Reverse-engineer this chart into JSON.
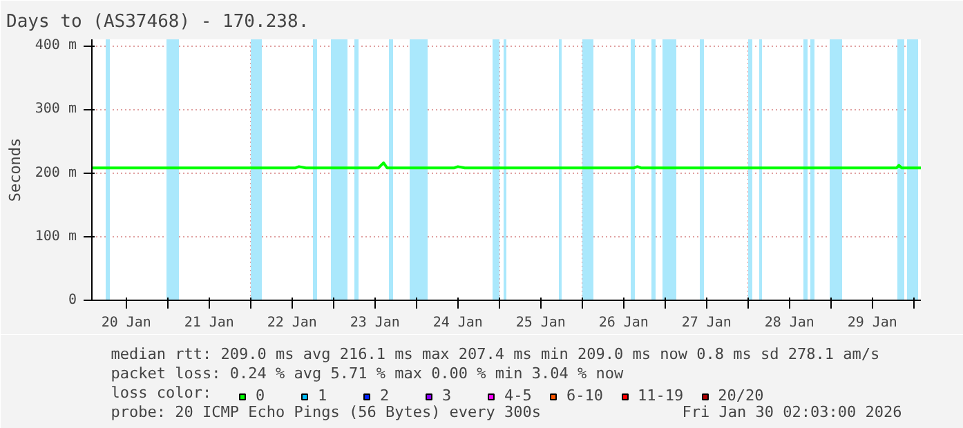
{
  "chart_data": {
    "type": "line",
    "title": "Days to (AS37468) - 170.238.",
    "ylabel": "Seconds",
    "x": [
      "2026-01-20T02:03",
      "2026-01-22T13:00",
      "2026-01-22T14:00",
      "2026-01-22T16:00",
      "2026-01-23T13:00",
      "2026-01-23T14:30",
      "2026-01-23T15:30",
      "2026-01-24T11:00",
      "2026-01-24T12:00",
      "2026-01-24T14:00",
      "2026-01-26T15:00",
      "2026-01-26T16:00",
      "2026-01-26T17:00",
      "2026-01-29T19:00",
      "2026-01-29T19:40",
      "2026-01-29T20:30",
      "2026-01-30T02:03"
    ],
    "series": [
      {
        "name": "0",
        "color": "#00ff00",
        "values": [
          208,
          208,
          210,
          208,
          208,
          216,
          208,
          208,
          210,
          208,
          208,
          210,
          208,
          208,
          212,
          208,
          208
        ]
      },
      {
        "name": "1",
        "color": "#00bbff",
        "values": [
          null,
          null,
          null,
          null,
          null,
          null,
          null,
          null,
          null,
          null,
          null,
          null,
          null,
          null,
          null,
          null,
          null
        ]
      },
      {
        "name": "2",
        "color": "#0022ff",
        "values": [
          null,
          null,
          null,
          null,
          null,
          null,
          null,
          null,
          null,
          null,
          null,
          null,
          null,
          null,
          null,
          null,
          null
        ]
      },
      {
        "name": "3",
        "color": "#8800ff",
        "values": [
          null,
          null,
          null,
          null,
          null,
          null,
          null,
          null,
          null,
          null,
          null,
          null,
          null,
          null,
          null,
          null,
          null
        ]
      },
      {
        "name": "4-5",
        "color": "#ff00ff",
        "values": [
          null,
          null,
          null,
          null,
          null,
          null,
          null,
          null,
          null,
          null,
          null,
          null,
          null,
          null,
          null,
          null,
          null
        ]
      },
      {
        "name": "6-10",
        "color": "#ff5500",
        "values": [
          null,
          null,
          null,
          null,
          null,
          null,
          null,
          null,
          null,
          null,
          null,
          null,
          null,
          null,
          null,
          null,
          null
        ]
      },
      {
        "name": "11-19",
        "color": "#ff0000",
        "values": [
          null,
          null,
          null,
          null,
          null,
          null,
          null,
          null,
          null,
          null,
          null,
          null,
          null,
          null,
          null,
          null,
          null
        ]
      },
      {
        "name": "20/20",
        "color": "#aa0000",
        "values": [
          null,
          null,
          null,
          null,
          null,
          null,
          null,
          null,
          null,
          null,
          null,
          null,
          null,
          null,
          null,
          null,
          null
        ]
      }
    ],
    "legend_title": "loss color:",
    "legend": "bottom",
    "xlim": [
      "2026-01-20T02:03",
      "2026-01-30T02:03"
    ],
    "xticks": [
      {
        "value": "2026-01-20T12:00",
        "label": "20 Jan"
      },
      {
        "value": "2026-01-21T00:00",
        "label": null
      },
      {
        "value": "2026-01-21T12:00",
        "label": "21 Jan"
      },
      {
        "value": "2026-01-22T00:00",
        "label": null
      },
      {
        "value": "2026-01-22T12:00",
        "label": "22 Jan"
      },
      {
        "value": "2026-01-23T00:00",
        "label": null
      },
      {
        "value": "2026-01-23T12:00",
        "label": "23 Jan"
      },
      {
        "value": "2026-01-24T00:00",
        "label": null
      },
      {
        "value": "2026-01-24T12:00",
        "label": "24 Jan"
      },
      {
        "value": "2026-01-25T00:00",
        "label": null
      },
      {
        "value": "2026-01-25T12:00",
        "label": "25 Jan"
      },
      {
        "value": "2026-01-26T00:00",
        "label": null
      },
      {
        "value": "2026-01-26T12:00",
        "label": "26 Jan"
      },
      {
        "value": "2026-01-27T00:00",
        "label": null
      },
      {
        "value": "2026-01-27T12:00",
        "label": "27 Jan"
      },
      {
        "value": "2026-01-28T00:00",
        "label": null
      },
      {
        "value": "2026-01-28T12:00",
        "label": "28 Jan"
      },
      {
        "value": "2026-01-29T00:00",
        "label": null
      },
      {
        "value": "2026-01-29T12:00",
        "label": "29 Jan"
      },
      {
        "value": "2026-01-30T00:00",
        "label": null
      }
    ],
    "ylim": [
      0,
      410
    ],
    "yticks": [
      0,
      {
        "value": 100,
        "label": "100 m"
      },
      {
        "value": 200,
        "label": "200 m"
      },
      {
        "value": 300,
        "label": "300 m"
      },
      {
        "value": 400,
        "label": "400 m"
      }
    ],
    "grid": true,
    "bands": [
      {
        "axis": "x",
        "from": "2026-01-20T06:03",
        "to": "2026-01-20T07:15",
        "color": "#aae8fc"
      },
      {
        "axis": "x",
        "from": "2026-01-20T23:39",
        "to": "2026-01-21T03:15",
        "color": "#aae8fc"
      },
      {
        "axis": "x",
        "from": "2026-01-22T00:03",
        "to": "2026-01-22T03:15",
        "color": "#aae8fc"
      },
      {
        "axis": "x",
        "from": "2026-01-22T18:03",
        "to": "2026-01-22T19:15",
        "color": "#aae8fc"
      },
      {
        "axis": "x",
        "from": "2026-01-22T23:15",
        "to": "2026-01-23T04:03",
        "color": "#aae8fc"
      },
      {
        "axis": "x",
        "from": "2026-01-23T06:03",
        "to": "2026-01-23T07:15",
        "color": "#aae8fc"
      },
      {
        "axis": "x",
        "from": "2026-01-23T16:03",
        "to": "2026-01-23T17:15",
        "color": "#aae8fc"
      },
      {
        "axis": "x",
        "from": "2026-01-23T22:03",
        "to": "2026-01-24T03:15",
        "color": "#aae8fc"
      },
      {
        "axis": "x",
        "from": "2026-01-24T22:03",
        "to": "2026-01-25T00:03",
        "color": "#aae8fc"
      },
      {
        "axis": "x",
        "from": "2026-01-25T01:15",
        "to": "2026-01-25T02:03",
        "color": "#aae8fc"
      },
      {
        "axis": "x",
        "from": "2026-01-25T17:15",
        "to": "2026-01-25T18:03",
        "color": "#aae8fc"
      },
      {
        "axis": "x",
        "from": "2026-01-26T00:03",
        "to": "2026-01-26T03:15",
        "color": "#aae8fc"
      },
      {
        "axis": "x",
        "from": "2026-01-26T14:03",
        "to": "2026-01-26T15:15",
        "color": "#aae8fc"
      },
      {
        "axis": "x",
        "from": "2026-01-26T20:03",
        "to": "2026-01-26T21:15",
        "color": "#aae8fc"
      },
      {
        "axis": "x",
        "from": "2026-01-26T23:15",
        "to": "2026-01-27T03:15",
        "color": "#aae8fc"
      },
      {
        "axis": "x",
        "from": "2026-01-27T10:03",
        "to": "2026-01-27T11:15",
        "color": "#aae8fc"
      },
      {
        "axis": "x",
        "from": "2026-01-28T00:03",
        "to": "2026-01-28T01:15",
        "color": "#aae8fc"
      },
      {
        "axis": "x",
        "from": "2026-01-28T03:15",
        "to": "2026-01-28T04:03",
        "color": "#aae8fc"
      },
      {
        "axis": "x",
        "from": "2026-01-28T16:03",
        "to": "2026-01-28T17:15",
        "color": "#aae8fc"
      },
      {
        "axis": "x",
        "from": "2026-01-28T18:03",
        "to": "2026-01-28T19:15",
        "color": "#aae8fc"
      },
      {
        "axis": "x",
        "from": "2026-01-28T23:39",
        "to": "2026-01-29T03:15",
        "color": "#aae8fc"
      },
      {
        "axis": "x",
        "from": "2026-01-29T19:15",
        "to": "2026-01-29T21:15",
        "color": "#aae8fc"
      },
      {
        "axis": "x",
        "from": "2026-01-29T22:03",
        "to": "2026-01-30T01:15",
        "color": "#aae8fc"
      }
    ],
    "annotations": [
      "median rtt:  209.0 ms avg  216.1 ms max  207.4 ms min  209.0 ms now  0.8 ms sd  278.1   am/s",
      "packet loss: 0.24 % avg  5.71 % max  0.00 % min  3.04 % now",
      "probe:       20 ICMP Echo Pings (56 Bytes) every 300s",
      "Fri Jan 30 02:03:00 2026"
    ]
  }
}
